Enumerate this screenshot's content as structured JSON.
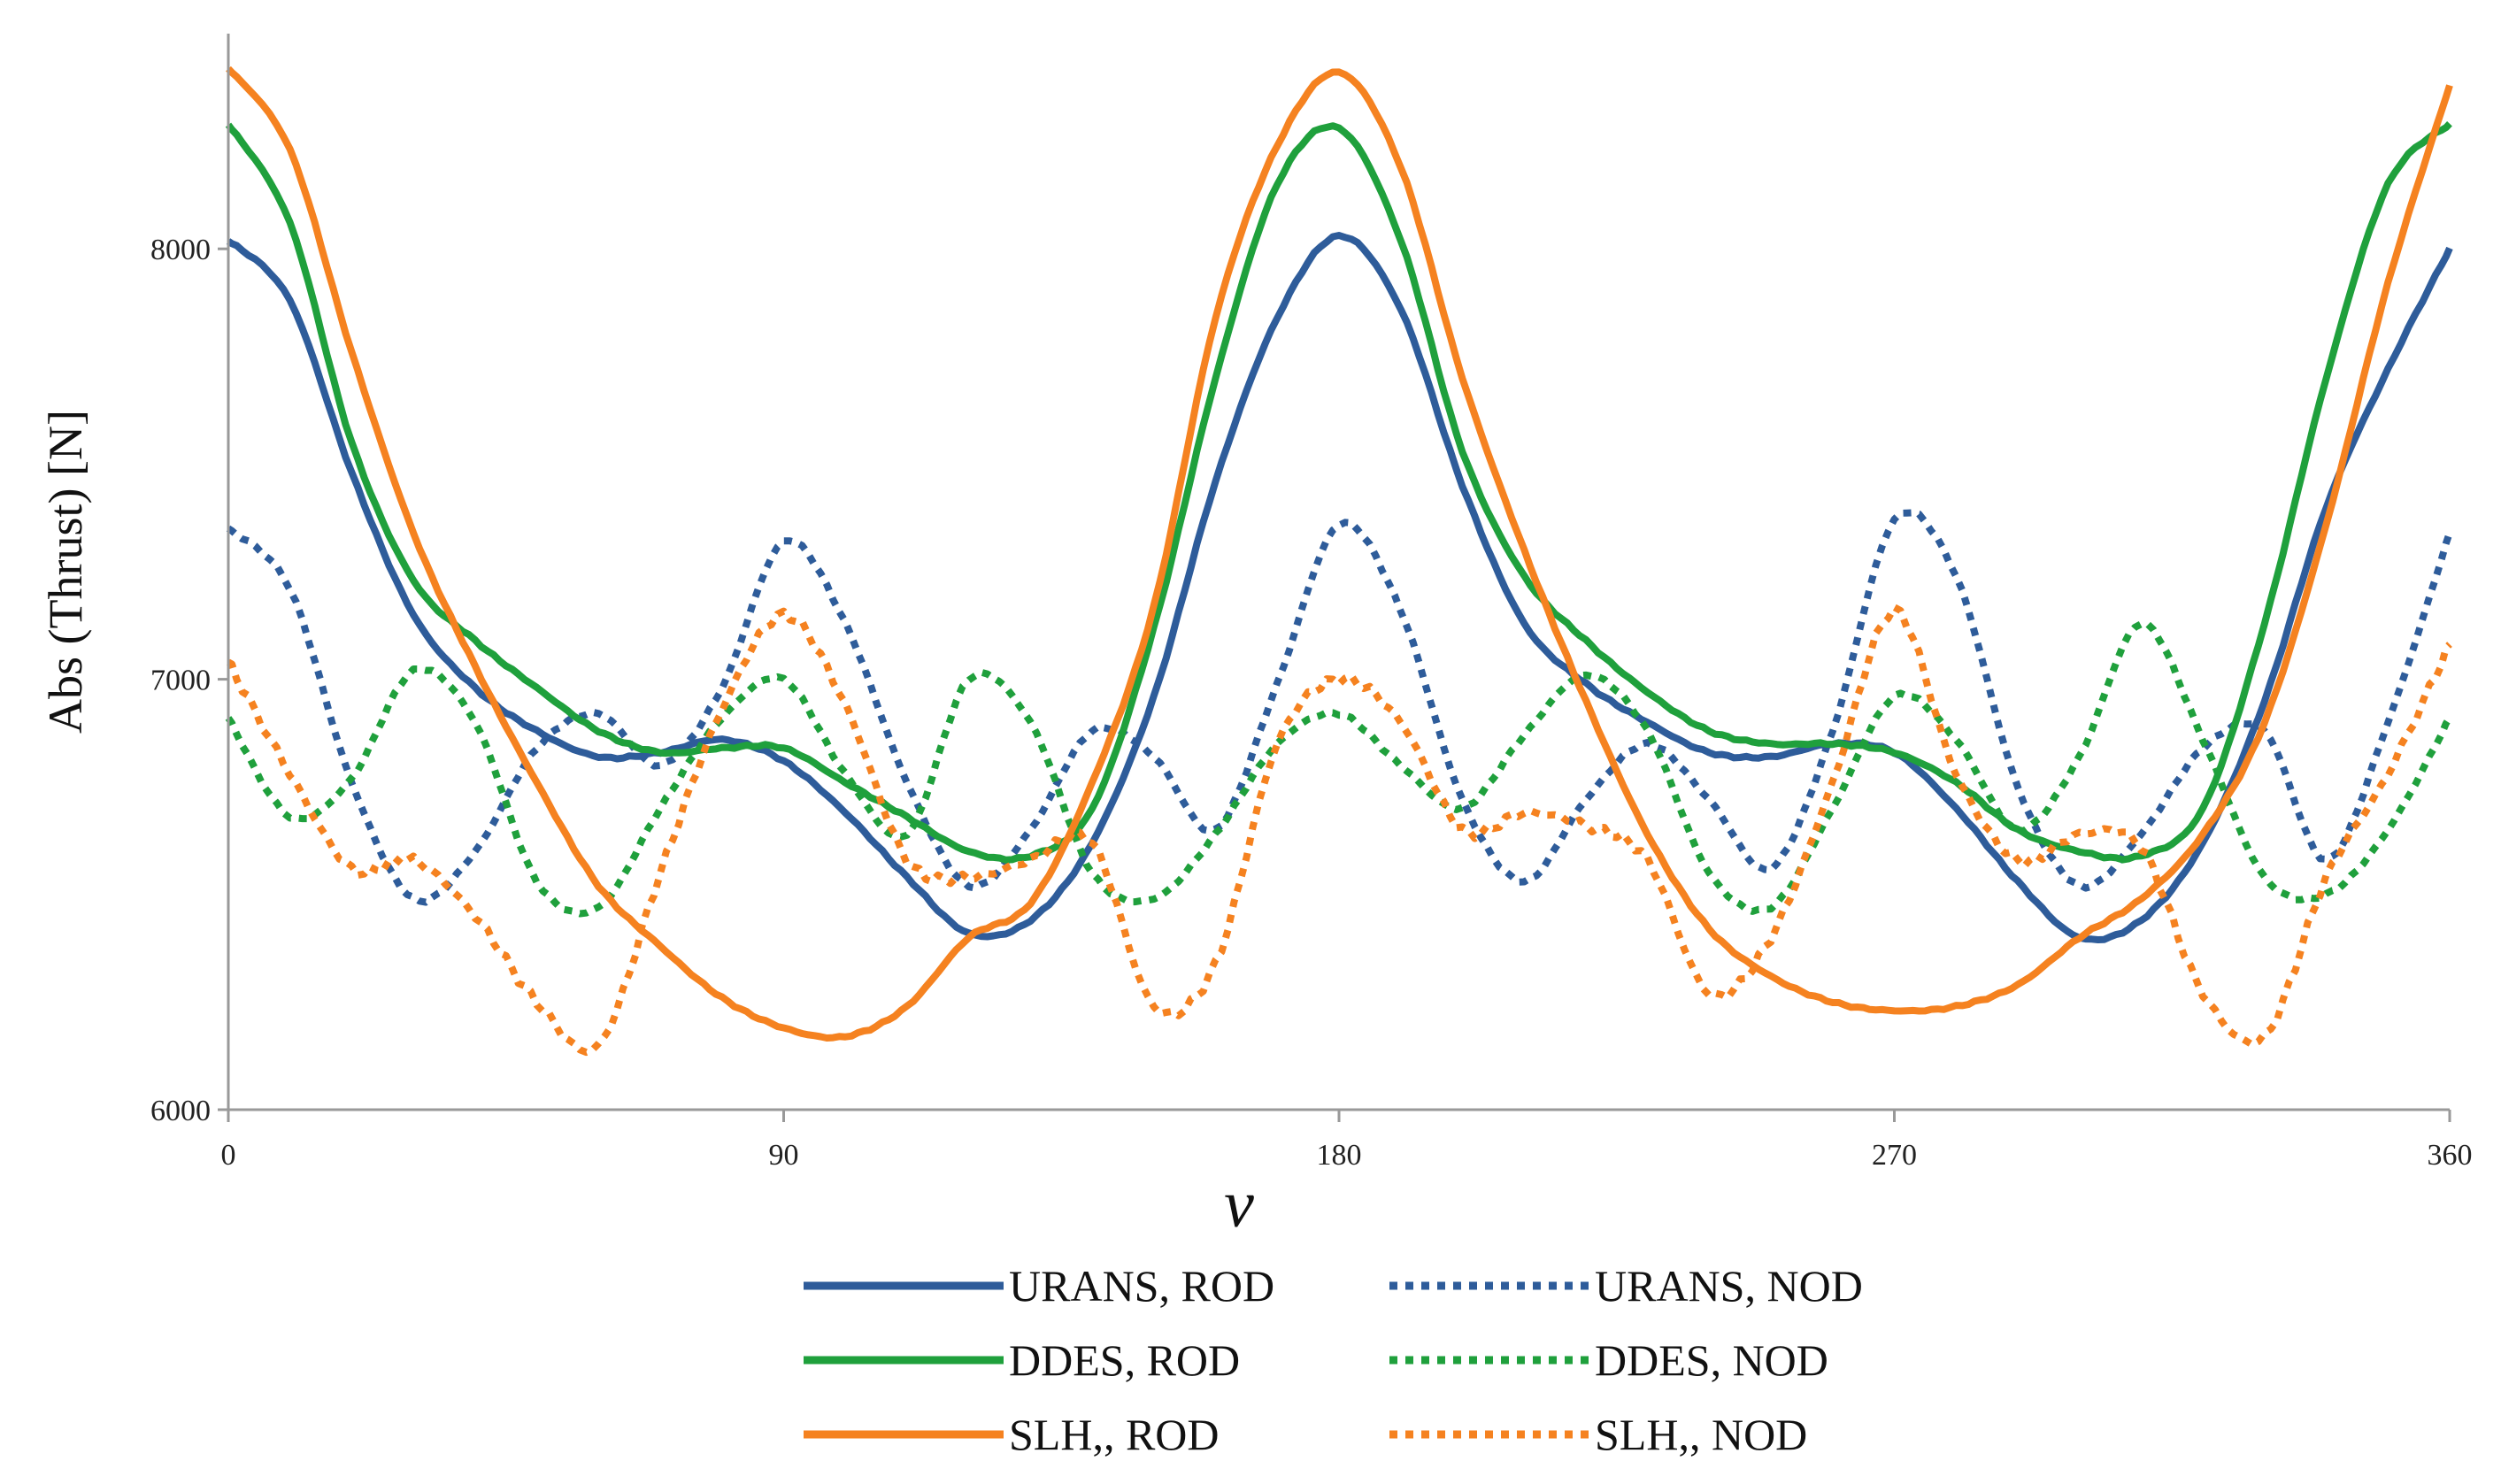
{
  "chart_data": {
    "type": "line",
    "title": "",
    "xlabel": "ν",
    "ylabel": "Abs (Thrust) [N]",
    "xlim": [
      0,
      360
    ],
    "ylim": [
      6000,
      8500
    ],
    "xticks": [
      0,
      90,
      180,
      270,
      360
    ],
    "yticks": [
      6000,
      7000,
      8000
    ],
    "x_tick_labels": [
      "0",
      "90",
      "180",
      "270",
      "360"
    ],
    "y_tick_labels": [
      "6000",
      "7000",
      "8000"
    ],
    "grid": false,
    "legend": "bottom",
    "x": [
      0,
      10,
      20,
      30,
      40,
      50,
      60,
      70,
      80,
      90,
      100,
      110,
      120,
      130,
      140,
      150,
      160,
      170,
      180,
      190,
      200,
      210,
      220,
      230,
      240,
      250,
      260,
      270,
      280,
      290,
      300,
      310,
      320,
      330,
      340,
      350,
      360
    ],
    "series": [
      {
        "name": "URANS, ROD",
        "color": "#2e5c9a",
        "style": "solid",
        "values": [
          8020,
          7880,
          7480,
          7150,
          6980,
          6880,
          6820,
          6830,
          6860,
          6810,
          6690,
          6540,
          6410,
          6440,
          6620,
          6960,
          7460,
          7840,
          8030,
          7860,
          7450,
          7130,
          6990,
          6900,
          6830,
          6820,
          6850,
          6830,
          6700,
          6530,
          6400,
          6440,
          6620,
          6950,
          7400,
          7720,
          8000
        ]
      },
      {
        "name": "URANS, NOD",
        "color": "#2e5c9a",
        "style": "dotted",
        "values": [
          7350,
          7210,
          6760,
          6490,
          6600,
          6840,
          6920,
          6800,
          6980,
          7320,
          7130,
          6760,
          6520,
          6650,
          6880,
          6820,
          6650,
          6990,
          7360,
          7160,
          6720,
          6530,
          6720,
          6850,
          6720,
          6560,
          6880,
          7370,
          7240,
          6750,
          6520,
          6640,
          6840,
          6880,
          6580,
          6900,
          7340
        ]
      },
      {
        "name": "DDES, ROD",
        "color": "#1fa03c",
        "style": "solid",
        "values": [
          8290,
          8060,
          7550,
          7230,
          7090,
          6980,
          6880,
          6830,
          6840,
          6840,
          6760,
          6680,
          6600,
          6590,
          6700,
          7120,
          7700,
          8150,
          8280,
          8020,
          7530,
          7240,
          7090,
          6970,
          6880,
          6850,
          6850,
          6830,
          6760,
          6650,
          6600,
          6590,
          6700,
          7130,
          7700,
          8150,
          8290
        ]
      },
      {
        "name": "DDES, NOD",
        "color": "#1fa03c",
        "style": "dotted",
        "values": [
          6910,
          6680,
          6770,
          7020,
          6900,
          6530,
          6470,
          6700,
          6910,
          7000,
          6780,
          6640,
          7000,
          6900,
          6550,
          6490,
          6640,
          6850,
          6920,
          6800,
          6700,
          6870,
          7010,
          6880,
          6550,
          6470,
          6700,
          6960,
          6860,
          6650,
          6820,
          7130,
          6860,
          6540,
          6500,
          6650,
          6910
        ]
      },
      {
        "name": "SLH,, ROD",
        "color": "#f58220",
        "style": "solid",
        "values": [
          8420,
          8230,
          7760,
          7340,
          7030,
          6760,
          6520,
          6380,
          6260,
          6190,
          6170,
          6240,
          6400,
          6480,
          6760,
          7170,
          7840,
          8240,
          8410,
          8190,
          7700,
          7300,
          6950,
          6640,
          6420,
          6310,
          6250,
          6230,
          6240,
          6290,
          6400,
          6490,
          6640,
          6900,
          7360,
          7920,
          8380
        ]
      },
      {
        "name": "SLH,, NOD",
        "color": "#f58220",
        "style": "dotted",
        "values": [
          7040,
          6780,
          6560,
          6580,
          6450,
          6250,
          6150,
          6550,
          6930,
          7150,
          6940,
          6580,
          6540,
          6580,
          6620,
          6240,
          6340,
          6850,
          7000,
          6900,
          6650,
          6690,
          6660,
          6580,
          6270,
          6400,
          6760,
          7160,
          6780,
          6580,
          6640,
          6610,
          6270,
          6170,
          6540,
          6780,
          7080
        ]
      }
    ]
  }
}
